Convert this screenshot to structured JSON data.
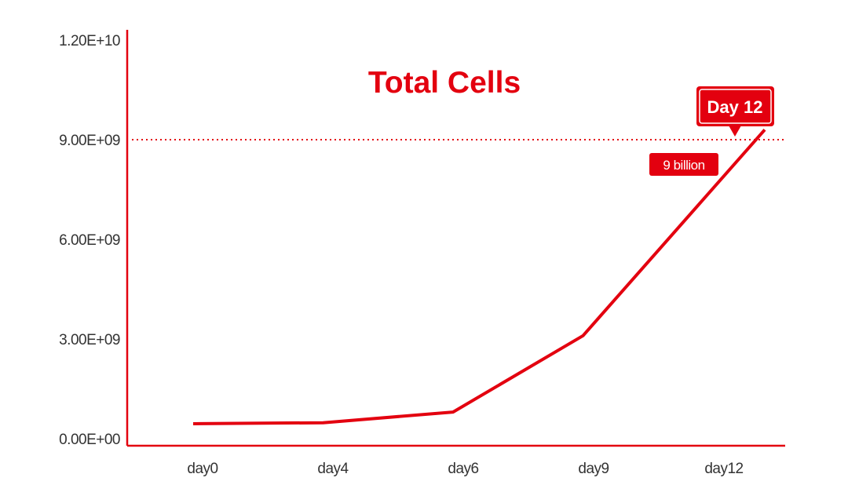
{
  "chart_data": {
    "type": "line",
    "title": "Total Cells",
    "categories": [
      "day0",
      "day4",
      "day6",
      "day9",
      "day12"
    ],
    "series": [
      {
        "name": "Total Cells",
        "values": [
          450000000,
          480000000,
          800000000,
          3100000000,
          9300000000
        ]
      }
    ],
    "yticks": [
      "0.00E+00",
      "3.00E+09",
      "6.00E+09",
      "9.00E+09",
      "1.20E+10"
    ],
    "ytick_values": [
      0,
      3000000000,
      6000000000,
      9000000000,
      12000000000
    ],
    "ylim": [
      0,
      12000000000
    ],
    "xlabel": "",
    "ylabel": "",
    "reference_line": {
      "value": 9000000000,
      "style": "dotted"
    },
    "annotations": {
      "callout": "Day 12",
      "badge": "9 billion"
    }
  },
  "colors": {
    "accent": "#e3000f",
    "tick_text": "#333333"
  }
}
